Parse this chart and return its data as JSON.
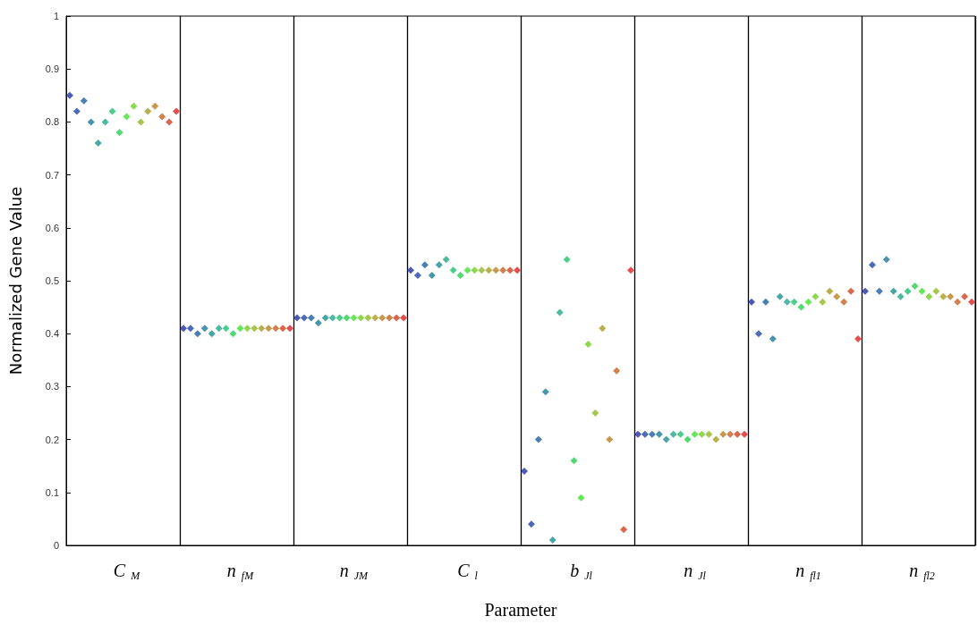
{
  "chart_data": {
    "type": "scatter",
    "xlabel": "Parameter",
    "ylabel": "Normalized Gene Value",
    "marker": "diamond",
    "grid": "x",
    "ylim": [
      0,
      1
    ],
    "yticks": [
      0,
      0.1,
      0.2,
      0.3,
      0.4,
      0.5,
      0.6,
      0.7,
      0.8,
      0.9,
      1
    ],
    "categories": [
      null,
      null,
      null,
      null,
      null,
      null,
      null,
      null,
      "C$_{M}$",
      null,
      null,
      null,
      null,
      null,
      null,
      null,
      null,
      null,
      null,
      null,
      null,
      null,
      null,
      null,
      "n$_{fM}$",
      null,
      null,
      null,
      null,
      null,
      null,
      null,
      null,
      null,
      null,
      null,
      null,
      null,
      null,
      null,
      "n$_{JM}$",
      null,
      null,
      null,
      null,
      null,
      null,
      null,
      null,
      null,
      null,
      null,
      null,
      null,
      null,
      null,
      "C$_{l}$",
      null,
      null,
      null,
      null,
      null,
      null,
      null,
      null,
      null,
      null,
      null,
      null,
      null,
      null,
      null,
      "b$_{Jl}$",
      null,
      null,
      null,
      null,
      null,
      null,
      null,
      null,
      null,
      null,
      null,
      null,
      null,
      null,
      null,
      "n$_{Jl}$",
      null,
      null,
      null,
      null,
      null,
      null,
      null,
      null,
      null,
      null,
      null,
      null,
      null,
      null,
      null,
      "n$_{fl1}$",
      null,
      null,
      null,
      null,
      null,
      null,
      null,
      null,
      null,
      null,
      null,
      null,
      null,
      null,
      null,
      "n$_{fl2}$",
      null,
      null,
      null,
      null,
      null,
      null,
      null
    ],
    "values": [
      0.85,
      0.82,
      0.84,
      0.8,
      0.76,
      0.8,
      0.82,
      0.78,
      0.81,
      0.83,
      0.8,
      0.82,
      0.83,
      0.81,
      0.8,
      0.82,
      0.41,
      0.41,
      0.4,
      0.41,
      0.4,
      0.41,
      0.41,
      0.4,
      0.41,
      0.41,
      0.41,
      0.41,
      0.41,
      0.41,
      0.41,
      0.41,
      0.43,
      0.43,
      0.43,
      0.42,
      0.43,
      0.43,
      0.43,
      0.43,
      0.43,
      0.43,
      0.43,
      0.43,
      0.43,
      0.43,
      0.43,
      0.43,
      0.52,
      0.51,
      0.53,
      0.51,
      0.53,
      0.54,
      0.52,
      0.51,
      0.52,
      0.52,
      0.52,
      0.52,
      0.52,
      0.52,
      0.52,
      0.52,
      0.14,
      0.04,
      0.2,
      0.29,
      0.01,
      0.44,
      0.54,
      0.16,
      0.09,
      0.38,
      0.25,
      0.41,
      0.2,
      0.33,
      0.03,
      0.52,
      0.21,
      0.21,
      0.21,
      0.21,
      0.2,
      0.21,
      0.21,
      0.2,
      0.21,
      0.21,
      0.21,
      0.2,
      0.21,
      0.21,
      0.21,
      0.21,
      0.46,
      0.4,
      0.46,
      0.39,
      0.47,
      0.46,
      0.46,
      0.45,
      0.46,
      0.47,
      0.46,
      0.48,
      0.47,
      0.46,
      0.48,
      0.39,
      0.48,
      0.53,
      0.48,
      0.54,
      0.48,
      0.47,
      0.48,
      0.49,
      0.48,
      0.47,
      0.48,
      0.47,
      0.47,
      0.46,
      0.47,
      0.46
    ],
    "colors": [
      "#1f2fa8",
      "#1f45a8",
      "#1d5fa0",
      "#1d7898",
      "#1d8f90",
      "#1fa888",
      "#20c070",
      "#28d050",
      "#40e030",
      "#70d020",
      "#90b820",
      "#a89c20",
      "#b88020",
      "#c86020",
      "#d04020",
      "#e02020",
      "#1f2fa8",
      "#1f45a8",
      "#1d5fa0",
      "#1d7898",
      "#1d8f90",
      "#1fa888",
      "#20c070",
      "#28d050",
      "#40e030",
      "#70d020",
      "#90b820",
      "#a89c20",
      "#b88020",
      "#c86020",
      "#d04020",
      "#e02020",
      "#1f2fa8",
      "#1f45a8",
      "#1d5fa0",
      "#1d7898",
      "#1d8f90",
      "#1fa888",
      "#20c070",
      "#28d050",
      "#40e030",
      "#70d020",
      "#90b820",
      "#a89c20",
      "#b88020",
      "#c86020",
      "#d04020",
      "#e02020",
      "#1f2fa8",
      "#1f45a8",
      "#1d5fa0",
      "#1d7898",
      "#1d8f90",
      "#1fa888",
      "#20c070",
      "#28d050",
      "#40e030",
      "#70d020",
      "#90b820",
      "#a89c20",
      "#b88020",
      "#c86020",
      "#d04020",
      "#e02020",
      "#1f2fa8",
      "#1f45a8",
      "#1d5fa0",
      "#1d7898",
      "#1d8f90",
      "#1fa888",
      "#20c070",
      "#28d050",
      "#40e030",
      "#70d020",
      "#90b820",
      "#a89c20",
      "#b88020",
      "#c86020",
      "#d04020",
      "#e02020",
      "#1f2fa8",
      "#1f45a8",
      "#1d5fa0",
      "#1d7898",
      "#1d8f90",
      "#1fa888",
      "#20c070",
      "#28d050",
      "#40e030",
      "#70d020",
      "#90b820",
      "#a89c20",
      "#b88020",
      "#c86020",
      "#d04020",
      "#e02020",
      "#1f2fa8",
      "#1f45a8",
      "#1d5fa0",
      "#1d7898",
      "#1d8f90",
      "#1fa888",
      "#20c070",
      "#28d050",
      "#40e030",
      "#70d020",
      "#90b820",
      "#a89c20",
      "#b88020",
      "#c86020",
      "#d04020",
      "#e02020",
      "#1f2fa8",
      "#1f45a8",
      "#1d5fa0",
      "#1d7898",
      "#1d8f90",
      "#1fa888",
      "#20c070",
      "#28d050",
      "#40e030",
      "#70d020",
      "#90b820",
      "#a89c20",
      "#b88020",
      "#c86020",
      "#d04020",
      "#e02020"
    ]
  }
}
